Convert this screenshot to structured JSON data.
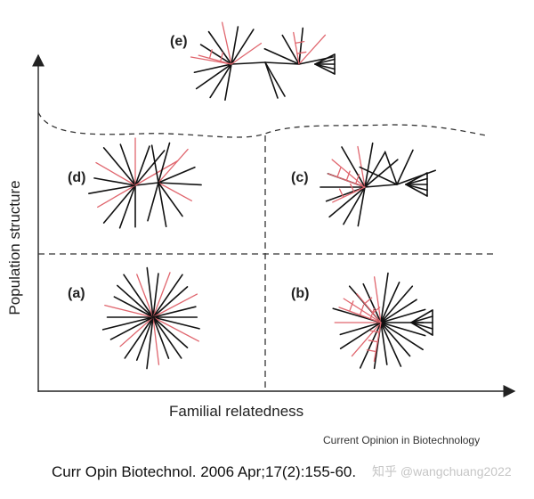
{
  "axes": {
    "y_label": "Population structure",
    "x_label": "Familial relatedness"
  },
  "panels": [
    {
      "id": "a",
      "label": "(a)"
    },
    {
      "id": "b",
      "label": "(b)"
    },
    {
      "id": "c",
      "label": "(c)"
    },
    {
      "id": "d",
      "label": "(d)"
    },
    {
      "id": "e",
      "label": "(e)"
    }
  ],
  "source": "Current Opinion in Biotechnology",
  "citation": "Curr Opin Biotechnol. 2006 Apr;17(2):155-60.",
  "watermark": "知乎 @wangchuang2022",
  "colors": {
    "branch": "#111111",
    "highlight": "#e0666e",
    "axis": "#222222",
    "dashed": "#333333"
  }
}
